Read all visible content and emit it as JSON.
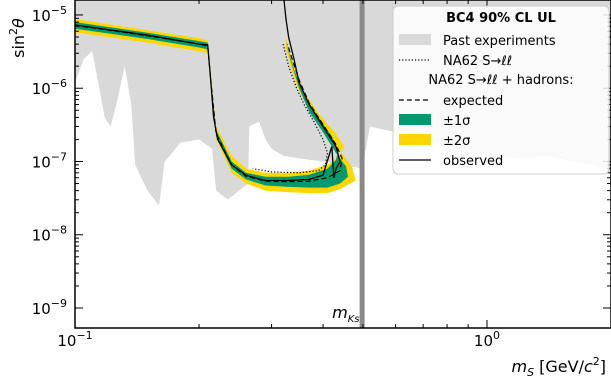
{
  "chart_data": {
    "type": "line",
    "title": "",
    "xlabel": "m_S [GeV/c²]",
    "ylabel": "sin²θ",
    "x_scale": "log",
    "y_scale": "log",
    "xlim": [
      0.1,
      2.0
    ],
    "ylim": [
      1e-09,
      3e-05
    ],
    "x_ticks": [
      {
        "value": 0.1,
        "base": "10",
        "exp": "−1"
      },
      {
        "value": 1.0,
        "base": "10",
        "exp": "0"
      }
    ],
    "y_ticks": [
      {
        "value": 1e-09,
        "base": "10",
        "exp": "−9"
      },
      {
        "value": 1e-08,
        "base": "10",
        "exp": "−8"
      },
      {
        "value": 1e-07,
        "base": "10",
        "exp": "−7"
      },
      {
        "value": 1e-06,
        "base": "10",
        "exp": "−6"
      },
      {
        "value": 1e-05,
        "base": "10",
        "exp": "−5"
      }
    ],
    "mk_line": {
      "x": 0.4976,
      "label": "m_Ks"
    },
    "legend": {
      "position": "top-right",
      "title": "BC4 90% CL UL",
      "entries": [
        {
          "label": "Past experiments",
          "style": "patch",
          "color": "#d9d9d9"
        },
        {
          "label": "NA62 S→ℓℓ",
          "style": "dotted"
        },
        {
          "label": "NA62 S→ℓℓ + hadrons:",
          "style": "header"
        },
        {
          "label": "expected",
          "style": "dashed"
        },
        {
          "label": "±1σ",
          "style": "patch",
          "color": "#009a6e"
        },
        {
          "label": "±2σ",
          "style": "patch",
          "color": "#ffd700"
        },
        {
          "label": "observed",
          "style": "solid"
        }
      ]
    },
    "series": [
      {
        "name": "Past experiments",
        "kind": "area",
        "color": "#d9d9d9",
        "upper": [
          [
            0.1,
            3e-05
          ],
          [
            2.0,
            3e-05
          ]
        ],
        "lower": [
          [
            0.1,
            1.2e-06
          ],
          [
            0.105,
            2.5e-06
          ],
          [
            0.11,
            3.2e-06
          ],
          [
            0.113,
            1.5e-06
          ],
          [
            0.118,
            4e-07
          ],
          [
            0.122,
            3e-07
          ],
          [
            0.126,
            6e-07
          ],
          [
            0.132,
            2e-06
          ],
          [
            0.137,
            6e-07
          ],
          [
            0.14,
            9e-08
          ],
          [
            0.15,
            4e-08
          ],
          [
            0.16,
            2.5e-08
          ],
          [
            0.165,
            1e-07
          ],
          [
            0.17,
            1.2e-07
          ],
          [
            0.18,
            1.8e-07
          ],
          [
            0.2,
            2e-07
          ],
          [
            0.215,
            1.5e-07
          ],
          [
            0.22,
            4e-08
          ],
          [
            0.235,
            3e-08
          ],
          [
            0.25,
            4e-08
          ],
          [
            0.263,
            5e-08
          ],
          [
            0.265,
            3e-07
          ],
          [
            0.28,
            3.5e-07
          ],
          [
            0.29,
            2e-07
          ],
          [
            0.3,
            1.5e-07
          ],
          [
            0.32,
            1.2e-07
          ],
          [
            0.35,
            1.1e-07
          ],
          [
            0.4,
            1e-07
          ],
          [
            0.45,
            9e-08
          ],
          [
            0.4976,
            8e-08
          ],
          [
            0.52,
            3e-07
          ],
          [
            0.6,
            2.5e-07
          ],
          [
            0.7,
            2e-07
          ],
          [
            0.8,
            1.6e-07
          ],
          [
            0.9,
            1.4e-07
          ],
          [
            1.0,
            1.2e-07
          ],
          [
            1.2,
            1.1e-07
          ],
          [
            1.4,
            1.2e-07
          ],
          [
            1.6,
            1e-07
          ],
          [
            1.8,
            9e-08
          ],
          [
            2.0,
            7e-08
          ]
        ]
      },
      {
        "name": "±2σ",
        "kind": "band",
        "color": "#ffd700",
        "upper": [
          [
            0.1,
            8.8e-06
          ],
          [
            0.15,
            6.2e-06
          ],
          [
            0.2,
            4.8e-06
          ],
          [
            0.21,
            4.5e-06
          ],
          [
            0.213,
            1.8e-06
          ],
          [
            0.22,
            3e-07
          ],
          [
            0.24,
            1.2e-07
          ],
          [
            0.26,
            8e-08
          ],
          [
            0.29,
            7e-08
          ],
          [
            0.33,
            7e-08
          ],
          [
            0.37,
            7.5e-08
          ],
          [
            0.41,
            9e-08
          ],
          [
            0.44,
            1.2e-07
          ],
          [
            0.45,
            1.6e-07
          ],
          [
            0.43,
            2.4e-07
          ],
          [
            0.39,
            4.5e-07
          ],
          [
            0.36,
            9e-07
          ],
          [
            0.34,
            2e-06
          ],
          [
            0.33,
            3.5e-06
          ],
          [
            0.325,
            5e-06
          ]
        ],
        "lower": [
          [
            0.1,
            5.8e-06
          ],
          [
            0.15,
            4.2e-06
          ],
          [
            0.2,
            3.2e-06
          ],
          [
            0.21,
            3e-06
          ],
          [
            0.213,
            1.2e-06
          ],
          [
            0.22,
            2e-07
          ],
          [
            0.24,
            7e-08
          ],
          [
            0.26,
            5e-08
          ],
          [
            0.29,
            4e-08
          ],
          [
            0.33,
            3.8e-08
          ],
          [
            0.37,
            3.7e-08
          ],
          [
            0.41,
            3.7e-08
          ],
          [
            0.44,
            4.2e-08
          ],
          [
            0.48,
            5.5e-08
          ],
          [
            0.47,
            8.5e-08
          ],
          [
            0.44,
            1.4e-07
          ],
          [
            0.4,
            2.6e-07
          ],
          [
            0.37,
            5e-07
          ],
          [
            0.345,
            1.1e-06
          ],
          [
            0.33,
            2.5e-06
          ],
          [
            0.325,
            3.5e-06
          ]
        ]
      },
      {
        "name": "±1σ",
        "kind": "band",
        "color": "#009a6e",
        "upper": [
          [
            0.1,
            8e-06
          ],
          [
            0.15,
            5.7e-06
          ],
          [
            0.2,
            4.4e-06
          ],
          [
            0.21,
            4.2e-06
          ],
          [
            0.213,
            1.6e-06
          ],
          [
            0.22,
            2.7e-07
          ],
          [
            0.24,
            1e-07
          ],
          [
            0.26,
            7e-08
          ],
          [
            0.29,
            6.2e-08
          ],
          [
            0.33,
            6.2e-08
          ],
          [
            0.37,
            6.6e-08
          ],
          [
            0.41,
            8e-08
          ],
          [
            0.43,
            1.05e-07
          ],
          [
            0.435,
            1.4e-07
          ],
          [
            0.42,
            2.2e-07
          ],
          [
            0.39,
            4e-07
          ],
          [
            0.36,
            8e-07
          ],
          [
            0.34,
            1.8e-06
          ],
          [
            0.33,
            3.2e-06
          ],
          [
            0.325,
            4.5e-06
          ]
        ],
        "lower": [
          [
            0.1,
            6.5e-06
          ],
          [
            0.15,
            4.7e-06
          ],
          [
            0.2,
            3.6e-06
          ],
          [
            0.21,
            3.4e-06
          ],
          [
            0.213,
            1.35e-06
          ],
          [
            0.22,
            2.2e-07
          ],
          [
            0.24,
            8e-08
          ],
          [
            0.26,
            5.7e-08
          ],
          [
            0.29,
            4.7e-08
          ],
          [
            0.33,
            4.5e-08
          ],
          [
            0.37,
            4.4e-08
          ],
          [
            0.41,
            4.4e-08
          ],
          [
            0.44,
            5e-08
          ],
          [
            0.46,
            6.2e-08
          ],
          [
            0.455,
            8.5e-08
          ],
          [
            0.43,
            1.3e-07
          ],
          [
            0.4,
            2.5e-07
          ],
          [
            0.37,
            4.8e-07
          ],
          [
            0.35,
            1e-06
          ],
          [
            0.335,
            2.2e-06
          ],
          [
            0.328,
            3.5e-06
          ]
        ]
      },
      {
        "name": "NA62 S→ℓℓ",
        "kind": "line",
        "style": "dotted",
        "points": [
          [
            0.32,
            4e-06
          ],
          [
            0.33,
            2e-06
          ],
          [
            0.345,
            1e-06
          ],
          [
            0.36,
            6e-07
          ],
          [
            0.38,
            3.5e-07
          ],
          [
            0.4,
            2e-07
          ],
          [
            0.41,
            1.3e-07
          ],
          [
            0.405,
            9e-08
          ],
          [
            0.39,
            7.5e-08
          ],
          [
            0.35,
            7e-08
          ],
          [
            0.3,
            7.2e-08
          ],
          [
            0.27,
            8e-08
          ]
        ]
      },
      {
        "name": "expected",
        "kind": "line",
        "style": "dashed",
        "points": [
          [
            0.1,
            7.2e-06
          ],
          [
            0.15,
            5.2e-06
          ],
          [
            0.2,
            4e-06
          ],
          [
            0.21,
            3.8e-06
          ],
          [
            0.213,
            1.5e-06
          ],
          [
            0.22,
            2.4e-07
          ],
          [
            0.24,
            9e-08
          ],
          [
            0.26,
            6.3e-08
          ],
          [
            0.29,
            5.4e-08
          ],
          [
            0.33,
            5.3e-08
          ],
          [
            0.37,
            5.4e-08
          ],
          [
            0.41,
            6e-08
          ],
          [
            0.44,
            7.5e-08
          ],
          [
            0.445,
            1.1e-07
          ],
          [
            0.43,
            1.7e-07
          ],
          [
            0.4,
            3.2e-07
          ],
          [
            0.37,
            6.3e-07
          ],
          [
            0.35,
            1.3e-06
          ],
          [
            0.335,
            2.7e-06
          ],
          [
            0.328,
            4e-06
          ]
        ]
      },
      {
        "name": "observed",
        "kind": "line",
        "style": "solid",
        "points": [
          [
            0.1,
            7.3e-06
          ],
          [
            0.15,
            5.3e-06
          ],
          [
            0.2,
            4e-06
          ],
          [
            0.21,
            3.9e-06
          ],
          [
            0.213,
            1.5e-06
          ],
          [
            0.217,
            4e-07
          ],
          [
            0.222,
            2e-07
          ],
          [
            0.24,
            9e-08
          ],
          [
            0.26,
            6.5e-08
          ],
          [
            0.29,
            5.5e-08
          ],
          [
            0.33,
            5.5e-08
          ],
          [
            0.37,
            5.7e-08
          ],
          [
            0.4,
            6.5e-08
          ],
          [
            0.42,
            1.6e-07
          ],
          [
            0.425,
            6e-08
          ],
          [
            0.43,
            8e-08
          ],
          [
            0.44,
            1e-07
          ],
          [
            0.43,
            1.6e-07
          ],
          [
            0.4,
            3e-07
          ],
          [
            0.37,
            6e-07
          ],
          [
            0.35,
            1.2e-06
          ],
          [
            0.34,
            2.5e-06
          ],
          [
            0.33,
            5e-06
          ],
          [
            0.325,
            9e-06
          ],
          [
            0.322,
            1.5e-05
          ],
          [
            0.32,
            3e-05
          ]
        ]
      }
    ]
  }
}
